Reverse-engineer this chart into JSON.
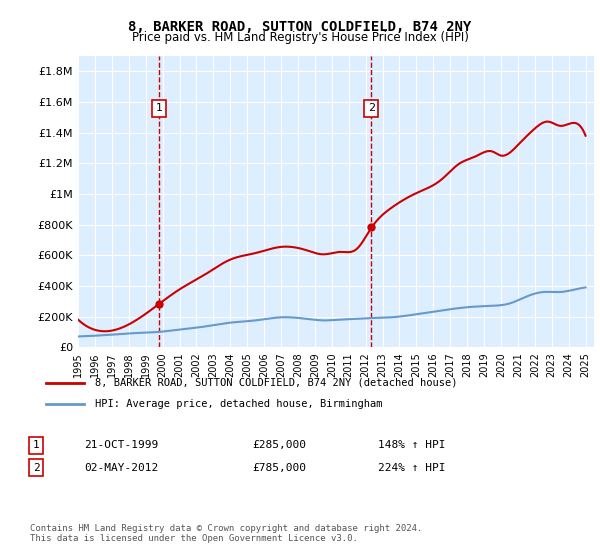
{
  "title": "8, BARKER ROAD, SUTTON COLDFIELD, B74 2NY",
  "subtitle": "Price paid vs. HM Land Registry's House Price Index (HPI)",
  "ylim": [
    0,
    1900000
  ],
  "yticks": [
    0,
    200000,
    400000,
    600000,
    800000,
    1000000,
    1200000,
    1400000,
    1600000,
    1800000
  ],
  "ytick_labels": [
    "£0",
    "£200K",
    "£400K",
    "£600K",
    "£800K",
    "£1M",
    "£1.2M",
    "£1.4M",
    "£1.6M",
    "£1.8M"
  ],
  "xlim_start": 1995.0,
  "xlim_end": 2025.5,
  "background_color": "#ddeeff",
  "plot_bg_color": "#ddeeff",
  "grid_color": "#ffffff",
  "red_line_color": "#cc0000",
  "blue_line_color": "#6699cc",
  "sale1_x": 1999.8,
  "sale1_y": 285000,
  "sale2_x": 2012.33,
  "sale2_y": 785000,
  "sale1_label": "1",
  "sale2_label": "2",
  "legend_red": "8, BARKER ROAD, SUTTON COLDFIELD, B74 2NY (detached house)",
  "legend_blue": "HPI: Average price, detached house, Birmingham",
  "table_row1": [
    "1",
    "21-OCT-1999",
    "£285,000",
    "148% ↑ HPI"
  ],
  "table_row2": [
    "2",
    "02-MAY-2012",
    "£785,000",
    "224% ↑ HPI"
  ],
  "footer": "Contains HM Land Registry data © Crown copyright and database right 2024.\nThis data is licensed under the Open Government Licence v3.0."
}
